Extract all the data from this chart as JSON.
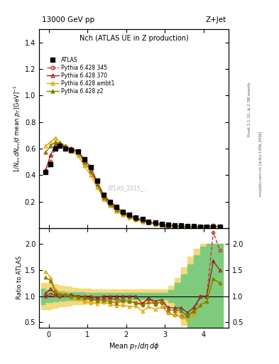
{
  "title_top_left": "13000 GeV pp",
  "title_top_right": "Z+Jet",
  "plot_title": "Nch (ATLAS UE in Z production)",
  "ylabel_main": "$1/N_{ev}\\,dN_{ev}/d$ mean $p_T\\,[\\mathrm{GeV}]^{-1}$",
  "ylabel_ratio": "Ratio to ATLAS",
  "xlabel": "Mean $p_T/d\\eta\\,d\\phi$",
  "watermark": "ATLAS_2015_...",
  "right_label1": "Rivet 3.1.10, ≥ 2.3M events",
  "right_label2": "mcplots.cern.ch [arXiv:1306.3436]",
  "atlas_x": [
    -0.08,
    0.05,
    0.17,
    0.28,
    0.42,
    0.58,
    0.75,
    0.92,
    1.08,
    1.25,
    1.42,
    1.58,
    1.75,
    1.92,
    2.08,
    2.25,
    2.42,
    2.58,
    2.75,
    2.92,
    3.08,
    3.25,
    3.42,
    3.58,
    3.75,
    3.92,
    4.08,
    4.25,
    4.42
  ],
  "atlas_y": [
    0.42,
    0.48,
    0.6,
    0.62,
    0.6,
    0.59,
    0.58,
    0.52,
    0.46,
    0.36,
    0.25,
    0.2,
    0.16,
    0.12,
    0.1,
    0.08,
    0.07,
    0.05,
    0.04,
    0.03,
    0.028,
    0.022,
    0.018,
    0.016,
    0.014,
    0.012,
    0.01,
    0.009,
    0.008
  ],
  "p345_x": [
    -0.08,
    0.05,
    0.17,
    0.28,
    0.42,
    0.58,
    0.75,
    0.92,
    1.08,
    1.25,
    1.42,
    1.58,
    1.75,
    1.92,
    2.08,
    2.25,
    2.42,
    2.58,
    2.75,
    2.92,
    3.08,
    3.25,
    3.42,
    3.58,
    3.75,
    3.92,
    4.08,
    4.25,
    4.42
  ],
  "p345_y": [
    0.42,
    0.5,
    0.61,
    0.62,
    0.61,
    0.6,
    0.58,
    0.51,
    0.44,
    0.34,
    0.24,
    0.19,
    0.15,
    0.11,
    0.09,
    0.07,
    0.06,
    0.048,
    0.034,
    0.026,
    0.019,
    0.014,
    0.011,
    0.01,
    0.01,
    0.012,
    0.01,
    0.02,
    0.015
  ],
  "p370_x": [
    -0.08,
    0.05,
    0.17,
    0.28,
    0.42,
    0.58,
    0.75,
    0.92,
    1.08,
    1.25,
    1.42,
    1.58,
    1.75,
    1.92,
    2.08,
    2.25,
    2.42,
    2.58,
    2.75,
    2.92,
    3.08,
    3.25,
    3.42,
    3.58,
    3.75,
    3.92,
    4.08,
    4.25,
    4.42
  ],
  "p370_y": [
    0.44,
    0.55,
    0.63,
    0.63,
    0.61,
    0.6,
    0.58,
    0.52,
    0.46,
    0.35,
    0.25,
    0.2,
    0.16,
    0.12,
    0.1,
    0.08,
    0.06,
    0.048,
    0.036,
    0.028,
    0.022,
    0.017,
    0.014,
    0.011,
    0.011,
    0.012,
    0.01,
    0.015,
    0.012
  ],
  "pambt1_x": [
    -0.08,
    0.05,
    0.17,
    0.28,
    0.42,
    0.58,
    0.75,
    0.92,
    1.08,
    1.25,
    1.42,
    1.58,
    1.75,
    1.92,
    2.08,
    2.25,
    2.42,
    2.58,
    2.75,
    2.92,
    3.08,
    3.25,
    3.42,
    3.58,
    3.75,
    3.92,
    4.08,
    4.25,
    4.42
  ],
  "pambt1_y": [
    0.62,
    0.65,
    0.68,
    0.65,
    0.62,
    0.58,
    0.55,
    0.47,
    0.4,
    0.31,
    0.22,
    0.17,
    0.13,
    0.1,
    0.08,
    0.065,
    0.05,
    0.04,
    0.03,
    0.024,
    0.019,
    0.014,
    0.011,
    0.009,
    0.009,
    0.01,
    0.009,
    0.012,
    0.01
  ],
  "pz2_x": [
    -0.08,
    0.05,
    0.17,
    0.28,
    0.42,
    0.58,
    0.75,
    0.92,
    1.08,
    1.25,
    1.42,
    1.58,
    1.75,
    1.92,
    2.08,
    2.25,
    2.42,
    2.58,
    2.75,
    2.92,
    3.08,
    3.25,
    3.42,
    3.58,
    3.75,
    3.92,
    4.08,
    4.25,
    4.42
  ],
  "pz2_y": [
    0.57,
    0.62,
    0.65,
    0.64,
    0.62,
    0.59,
    0.57,
    0.5,
    0.43,
    0.33,
    0.23,
    0.18,
    0.14,
    0.11,
    0.09,
    0.07,
    0.058,
    0.044,
    0.034,
    0.027,
    0.021,
    0.016,
    0.013,
    0.01,
    0.01,
    0.01,
    0.009,
    0.012,
    0.01
  ],
  "ratio_x": [
    -0.08,
    0.05,
    0.17,
    0.28,
    0.42,
    0.58,
    0.75,
    0.92,
    1.08,
    1.25,
    1.42,
    1.58,
    1.75,
    1.92,
    2.08,
    2.25,
    2.42,
    2.58,
    2.75,
    2.92,
    3.08,
    3.25,
    3.42,
    3.58,
    3.75,
    3.92,
    4.08,
    4.25,
    4.42
  ],
  "ratio_345_y": [
    1.0,
    1.04,
    1.02,
    1.0,
    1.02,
    1.02,
    1.0,
    0.98,
    0.96,
    0.944,
    0.96,
    0.95,
    0.938,
    0.917,
    0.9,
    0.875,
    0.857,
    0.96,
    0.85,
    0.867,
    0.679,
    0.636,
    0.611,
    0.625,
    0.714,
    1.0,
    1.0,
    2.22,
    1.875
  ],
  "ratio_370_y": [
    1.048,
    1.146,
    1.05,
    1.016,
    1.017,
    1.017,
    1.0,
    1.0,
    1.0,
    0.972,
    1.0,
    1.0,
    1.0,
    1.0,
    1.0,
    1.0,
    0.857,
    0.96,
    0.9,
    0.933,
    0.786,
    0.773,
    0.778,
    0.688,
    0.786,
    1.0,
    1.0,
    1.667,
    1.5
  ],
  "ratio_ambt1_y": [
    1.476,
    1.354,
    1.133,
    1.048,
    1.033,
    0.983,
    0.948,
    0.904,
    0.87,
    0.861,
    0.88,
    0.85,
    0.813,
    0.833,
    0.8,
    0.813,
    0.714,
    0.8,
    0.75,
    0.8,
    0.679,
    0.636,
    0.611,
    0.5625,
    0.643,
    0.833,
    0.9,
    1.333,
    1.25
  ],
  "ratio_z2_y": [
    1.357,
    1.292,
    1.083,
    1.032,
    1.033,
    1.0,
    0.983,
    0.962,
    0.935,
    0.917,
    0.92,
    0.9,
    0.875,
    0.917,
    0.9,
    0.875,
    0.829,
    0.88,
    0.85,
    0.9,
    0.75,
    0.727,
    0.722,
    0.625,
    0.714,
    0.833,
    0.9,
    1.333,
    1.25
  ],
  "band_x": [
    -0.2,
    0.0,
    0.17,
    0.33,
    0.5,
    0.67,
    0.83,
    1.0,
    1.17,
    1.33,
    1.5,
    1.67,
    1.83,
    2.0,
    2.17,
    2.33,
    2.5,
    2.67,
    2.83,
    3.0,
    3.17,
    3.33,
    3.5,
    3.67,
    3.83,
    4.0,
    4.17,
    4.33,
    4.5
  ],
  "yellow_lo": [
    0.75,
    0.75,
    0.78,
    0.8,
    0.82,
    0.84,
    0.85,
    0.86,
    0.87,
    0.87,
    0.87,
    0.87,
    0.87,
    0.87,
    0.87,
    0.87,
    0.87,
    0.87,
    0.87,
    0.87,
    0.8,
    0.65,
    0.45,
    0.25,
    0.1,
    0.0,
    0.0,
    0.0,
    0.0
  ],
  "yellow_hi": [
    1.25,
    1.25,
    1.22,
    1.2,
    1.18,
    1.16,
    1.15,
    1.14,
    1.13,
    1.13,
    1.13,
    1.13,
    1.13,
    1.13,
    1.13,
    1.13,
    1.13,
    1.13,
    1.13,
    1.13,
    1.2,
    1.35,
    1.55,
    1.75,
    1.9,
    2.0,
    2.0,
    2.0,
    2.0
  ],
  "green_lo": [
    0.85,
    0.88,
    0.9,
    0.91,
    0.92,
    0.93,
    0.93,
    0.94,
    0.94,
    0.94,
    0.94,
    0.94,
    0.94,
    0.94,
    0.94,
    0.94,
    0.94,
    0.94,
    0.94,
    0.94,
    0.88,
    0.75,
    0.58,
    0.4,
    0.22,
    0.05,
    0.0,
    0.0,
    0.0
  ],
  "green_hi": [
    1.15,
    1.12,
    1.1,
    1.09,
    1.08,
    1.07,
    1.07,
    1.06,
    1.06,
    1.06,
    1.06,
    1.06,
    1.06,
    1.06,
    1.06,
    1.06,
    1.06,
    1.06,
    1.06,
    1.06,
    1.12,
    1.25,
    1.42,
    1.6,
    1.78,
    1.95,
    2.0,
    2.0,
    2.0
  ],
  "color_345": "#c0392b",
  "color_370": "#922b21",
  "color_ambt1": "#e8a000",
  "color_z2": "#808000",
  "color_yellow": "#f5d97a",
  "color_green": "#7ecb7e",
  "ylim_main": [
    0.0,
    1.5
  ],
  "ylim_ratio": [
    0.4,
    2.3
  ],
  "xlim": [
    -0.25,
    4.65
  ],
  "yticks_main": [
    0.2,
    0.4,
    0.6,
    0.8,
    1.0,
    1.2,
    1.4
  ],
  "yticks_ratio": [
    0.5,
    1.0,
    1.5,
    2.0
  ]
}
